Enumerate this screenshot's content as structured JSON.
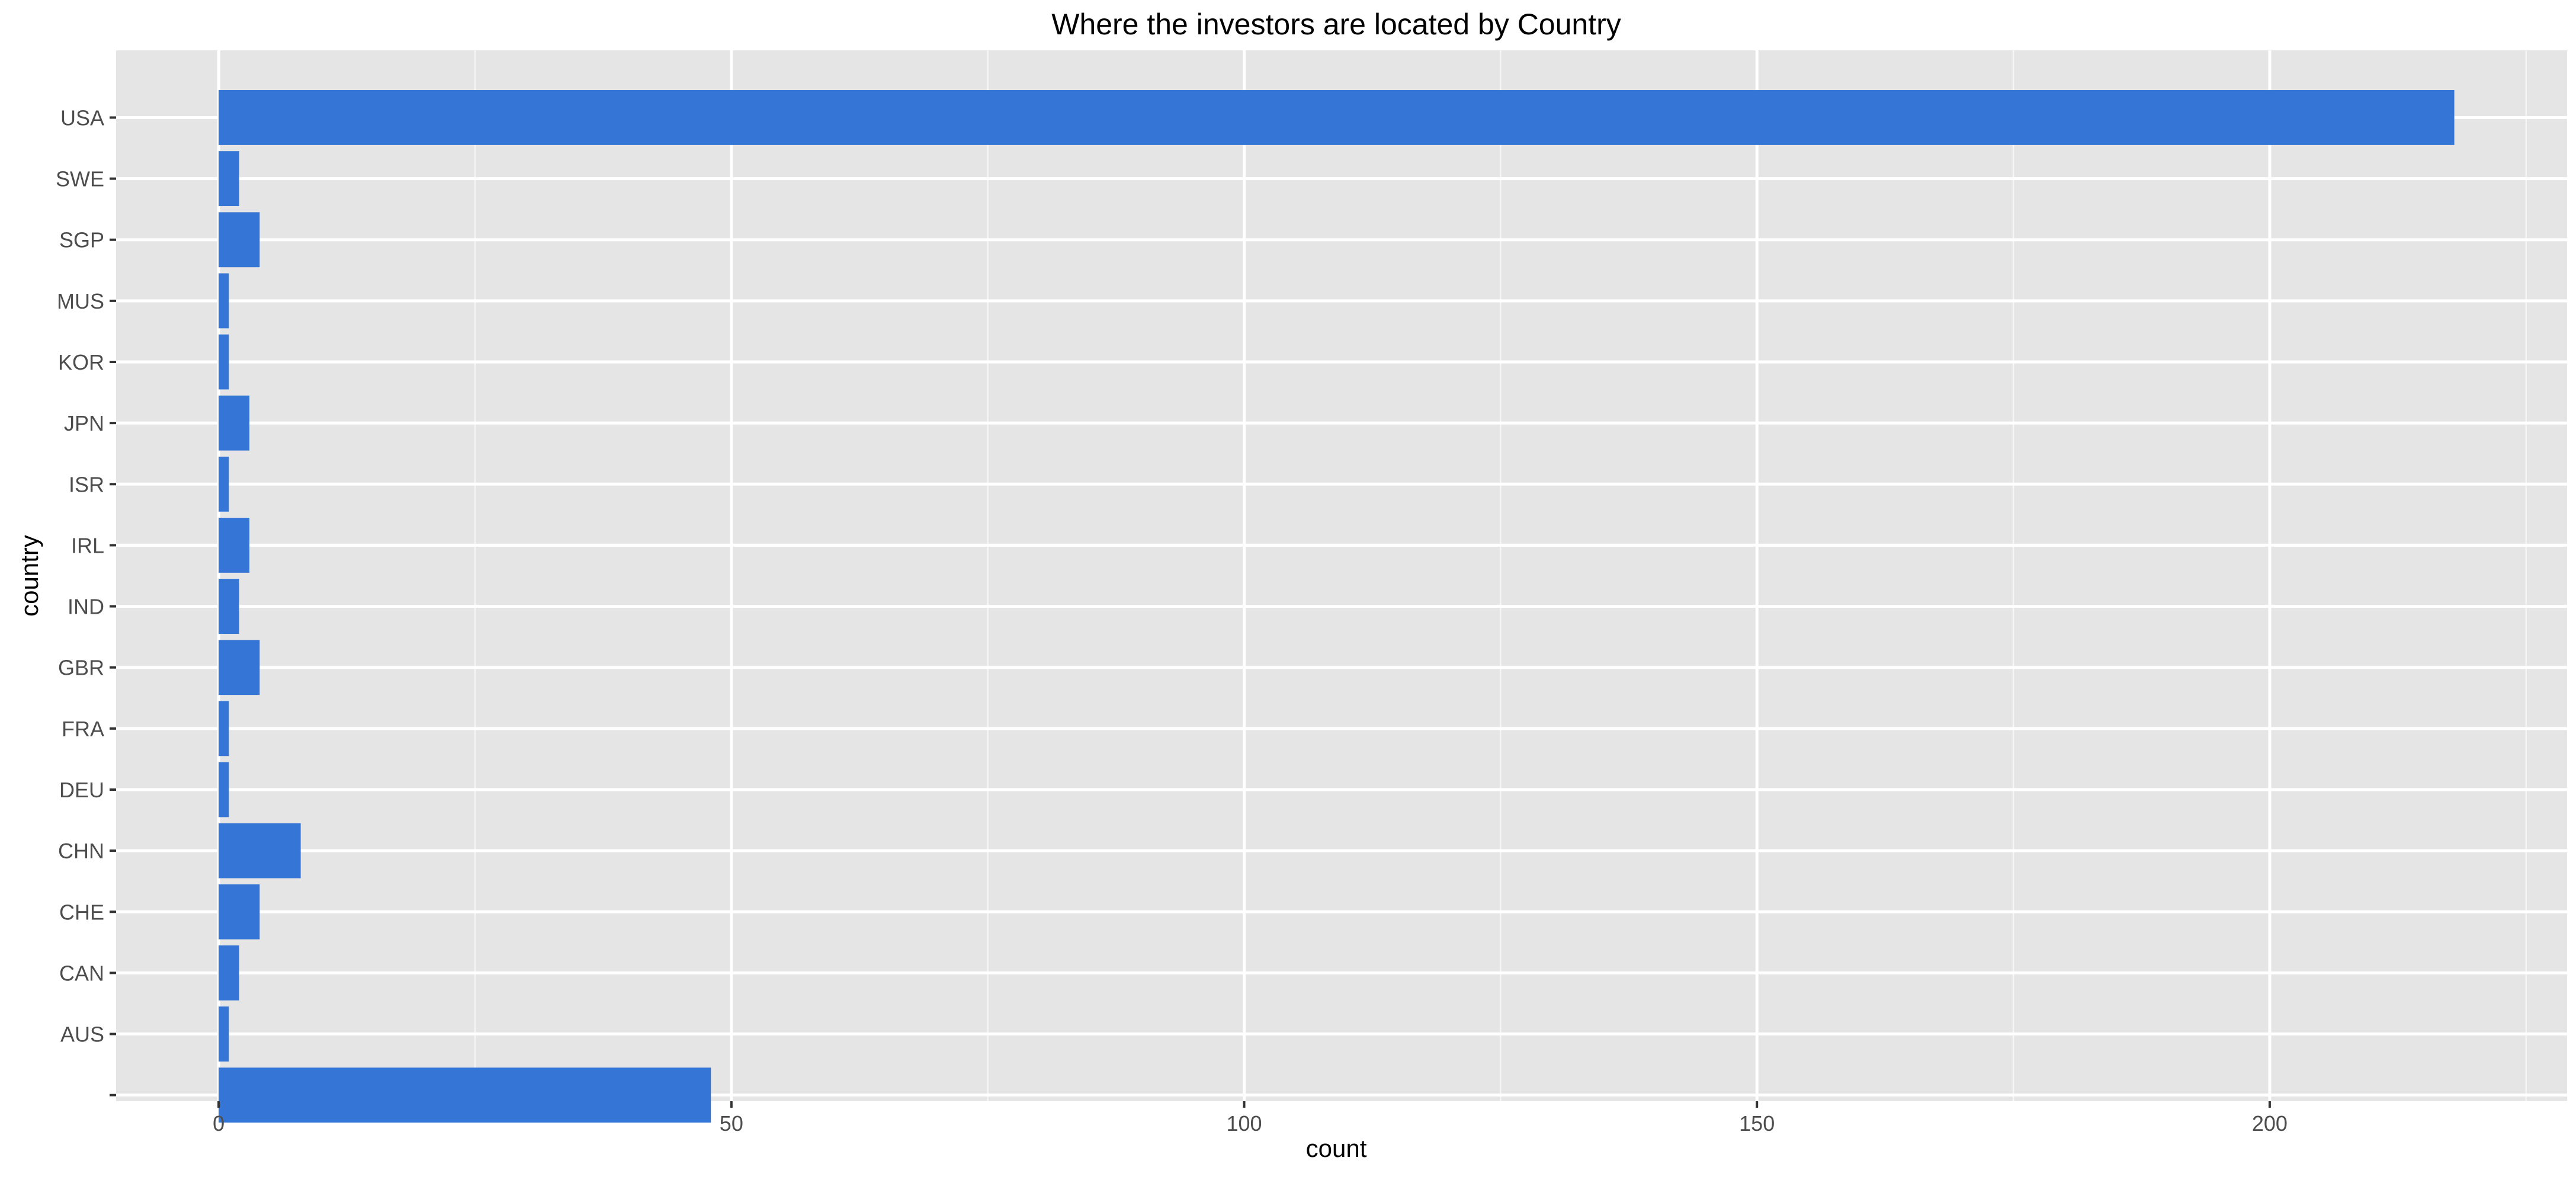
{
  "chart_data": {
    "type": "bar",
    "orientation": "horizontal",
    "title": "Where the investors are located by Country",
    "xlabel": "count",
    "ylabel": "country",
    "categories": [
      "",
      "AUS",
      "CAN",
      "CHE",
      "CHN",
      "DEU",
      "FRA",
      "GBR",
      "IND",
      "IRL",
      "ISR",
      "JPN",
      "KOR",
      "MUS",
      "SGP",
      "SWE",
      "USA"
    ],
    "values": [
      48,
      1,
      2,
      4,
      8,
      1,
      1,
      4,
      2,
      3,
      1,
      3,
      1,
      1,
      4,
      2,
      218
    ],
    "xlim": [
      -10,
      229
    ],
    "xticks": [
      0,
      50,
      100,
      150,
      200
    ],
    "xtick_labels": [
      "0",
      "50",
      "100",
      "150",
      "200"
    ],
    "grid": true,
    "legend": "none",
    "colors": {
      "bar": "#3575D5",
      "panel": "#E5E5E5",
      "grid": "#FFFFFF",
      "tick_text": "#4D4D4D",
      "tick_mark": "#333333"
    }
  }
}
